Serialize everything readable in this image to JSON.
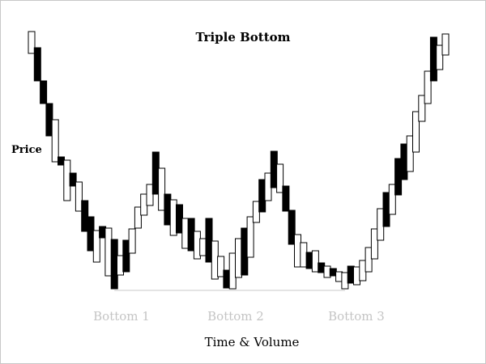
{
  "chart_data": {
    "type": "candlestick",
    "title": "Triple Bottom",
    "ylabel": "Price",
    "xlabel": "Time & Volume",
    "annotations": [
      "Bottom 1",
      "Bottom 2",
      "Bottom 3"
    ],
    "bottom_indices": [
      14,
      33,
      53
    ],
    "support_level": 359,
    "colors": {
      "up": "#ffffff",
      "down": "#000000",
      "outline": "#000000",
      "support": "#c8c8c8",
      "annotation": "#c4c4c4"
    },
    "candles": [
      {
        "open": 66,
        "close": 39,
        "dir": "up"
      },
      {
        "open": 59,
        "close": 100,
        "dir": "down"
      },
      {
        "open": 100,
        "close": 128,
        "dir": "down"
      },
      {
        "open": 128,
        "close": 168,
        "dir": "down"
      },
      {
        "open": 148,
        "close": 200,
        "dir": "up"
      },
      {
        "open": 194,
        "close": 204,
        "dir": "down"
      },
      {
        "open": 198,
        "close": 248,
        "dir": "up"
      },
      {
        "open": 214,
        "close": 230,
        "dir": "down"
      },
      {
        "open": 225,
        "close": 261,
        "dir": "up"
      },
      {
        "open": 248,
        "close": 286,
        "dir": "down"
      },
      {
        "open": 268,
        "close": 310,
        "dir": "down"
      },
      {
        "open": 285,
        "close": 324,
        "dir": "up"
      },
      {
        "open": 280,
        "close": 294,
        "dir": "down"
      },
      {
        "open": 282,
        "close": 341,
        "dir": "up"
      },
      {
        "open": 296,
        "close": 357,
        "dir": "down"
      },
      {
        "open": 316,
        "close": 340,
        "dir": "up"
      },
      {
        "open": 297,
        "close": 336,
        "dir": "down"
      },
      {
        "open": 283,
        "close": 313,
        "dir": "up"
      },
      {
        "open": 256,
        "close": 282,
        "dir": "up"
      },
      {
        "open": 240,
        "close": 266,
        "dir": "up"
      },
      {
        "open": 228,
        "close": 254,
        "dir": "up"
      },
      {
        "open": 188,
        "close": 240,
        "dir": "down"
      },
      {
        "open": 208,
        "close": 260,
        "dir": "up"
      },
      {
        "open": 240,
        "close": 278,
        "dir": "down"
      },
      {
        "open": 247,
        "close": 291,
        "dir": "up"
      },
      {
        "open": 253,
        "close": 288,
        "dir": "down"
      },
      {
        "open": 270,
        "close": 307,
        "dir": "up"
      },
      {
        "open": 270,
        "close": 310,
        "dir": "down"
      },
      {
        "open": 286,
        "close": 320,
        "dir": "up"
      },
      {
        "open": 295,
        "close": 316,
        "dir": "up"
      },
      {
        "open": 270,
        "close": 324,
        "dir": "down"
      },
      {
        "open": 298,
        "close": 345,
        "dir": "up"
      },
      {
        "open": 317,
        "close": 342,
        "dir": "up"
      },
      {
        "open": 334,
        "close": 356,
        "dir": "down"
      },
      {
        "open": 313,
        "close": 357,
        "dir": "up"
      },
      {
        "open": 295,
        "close": 343,
        "dir": "up"
      },
      {
        "open": 282,
        "close": 340,
        "dir": "down"
      },
      {
        "open": 268,
        "close": 318,
        "dir": "up"
      },
      {
        "open": 249,
        "close": 275,
        "dir": "up"
      },
      {
        "open": 222,
        "close": 262,
        "dir": "down"
      },
      {
        "open": 214,
        "close": 248,
        "dir": "up"
      },
      {
        "open": 187,
        "close": 232,
        "dir": "down"
      },
      {
        "open": 203,
        "close": 238,
        "dir": "up"
      },
      {
        "open": 230,
        "close": 261,
        "dir": "down"
      },
      {
        "open": 260,
        "close": 302,
        "dir": "down"
      },
      {
        "open": 290,
        "close": 330,
        "dir": "up"
      },
      {
        "open": 300,
        "close": 330,
        "dir": "up"
      },
      {
        "open": 312,
        "close": 332,
        "dir": "down"
      },
      {
        "open": 310,
        "close": 336,
        "dir": "up"
      },
      {
        "open": 325,
        "close": 337,
        "dir": "down"
      },
      {
        "open": 329,
        "close": 343,
        "dir": "up"
      },
      {
        "open": 332,
        "close": 341,
        "dir": "down"
      },
      {
        "open": 336,
        "close": 348,
        "dir": "up"
      },
      {
        "open": 337,
        "close": 357,
        "dir": "up"
      },
      {
        "open": 329,
        "close": 350,
        "dir": "down"
      },
      {
        "open": 330,
        "close": 352,
        "dir": "up"
      },
      {
        "open": 322,
        "close": 347,
        "dir": "up"
      },
      {
        "open": 306,
        "close": 336,
        "dir": "up"
      },
      {
        "open": 283,
        "close": 320,
        "dir": "up"
      },
      {
        "open": 258,
        "close": 297,
        "dir": "up"
      },
      {
        "open": 238,
        "close": 280,
        "dir": "down"
      },
      {
        "open": 228,
        "close": 265,
        "dir": "up"
      },
      {
        "open": 196,
        "close": 241,
        "dir": "down"
      },
      {
        "open": 178,
        "close": 222,
        "dir": "down"
      },
      {
        "open": 168,
        "close": 212,
        "dir": "up"
      },
      {
        "open": 138,
        "close": 188,
        "dir": "up"
      },
      {
        "open": 118,
        "close": 150,
        "dir": "up"
      },
      {
        "open": 88,
        "close": 128,
        "dir": "up"
      },
      {
        "open": 46,
        "close": 100,
        "dir": "down"
      },
      {
        "open": 56,
        "close": 86,
        "dir": "up"
      },
      {
        "open": 42,
        "close": 68,
        "dir": "up"
      }
    ]
  }
}
